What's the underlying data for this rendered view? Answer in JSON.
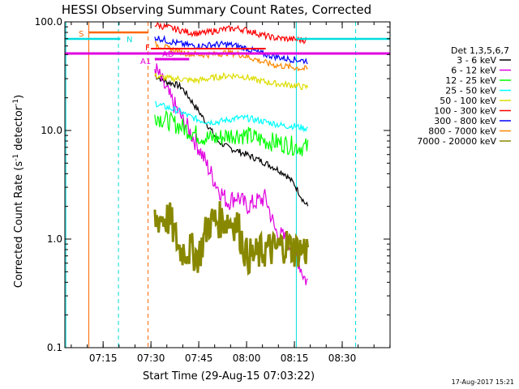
{
  "chart_data": {
    "type": "line",
    "title": "HESSI Observing Summary Count Rates, Corrected",
    "xlabel": "Start Time (29-Aug-15 07:03:22)",
    "ylabel": "Corrected Count Rate (s⁻¹ detector⁻¹)",
    "ylabel_parts": [
      "Corrected Count Rate (s",
      "-1",
      " detector",
      "-1",
      ")"
    ],
    "yscale": "log",
    "ylim": [
      0.1,
      100.0
    ],
    "xlim_minutes": [
      7.05,
      8.75
    ],
    "x_ticks": [
      {
        "t": 7.25,
        "label": "07:15"
      },
      {
        "t": 7.5,
        "label": "07:30"
      },
      {
        "t": 7.75,
        "label": "07:45"
      },
      {
        "t": 8.0,
        "label": "08:00"
      },
      {
        "t": 8.25,
        "label": "08:15"
      },
      {
        "t": 8.5,
        "label": "08:30"
      }
    ],
    "y_ticks": [
      {
        "v": 0.1,
        "label": "0.1"
      },
      {
        "v": 1.0,
        "label": "1.0"
      },
      {
        "v": 10.0,
        "label": "10.0"
      },
      {
        "v": 100.0,
        "label": "100.0"
      }
    ],
    "legend_title": "Det 1,3,5,6,7",
    "legend_position": "right",
    "series": [
      {
        "name": "3 - 6 keV",
        "color": "#000000",
        "x": [
          7.52,
          7.55,
          7.58,
          7.62,
          7.66,
          7.7,
          7.75,
          7.8,
          7.85,
          7.9,
          7.95,
          8.0,
          8.05,
          8.1,
          8.15,
          8.2,
          8.25,
          8.3,
          8.32
        ],
        "y": [
          32,
          30,
          28,
          27,
          25,
          20,
          15,
          11,
          8,
          7,
          6.5,
          6,
          5.5,
          5,
          4.5,
          4,
          3.2,
          2.2,
          2.0
        ]
      },
      {
        "name": "6 - 12 keV",
        "color": "#e000e0",
        "x": [
          7.52,
          7.55,
          7.6,
          7.65,
          7.7,
          7.75,
          7.8,
          7.85,
          7.9,
          7.95,
          8.0,
          8.05,
          8.1,
          8.15,
          8.2,
          8.25,
          8.3,
          8.32
        ],
        "y": [
          38,
          30,
          20,
          14,
          10,
          7,
          4.5,
          3,
          2.2,
          2.5,
          2.0,
          2.2,
          2.4,
          1.2,
          1.0,
          0.8,
          0.45,
          0.4
        ]
      },
      {
        "name": "12 - 25 keV",
        "color": "#00ff00",
        "x": [
          7.52,
          7.55,
          7.6,
          7.65,
          7.7,
          7.75,
          7.8,
          7.85,
          7.9,
          7.95,
          8.0,
          8.05,
          8.1,
          8.15,
          8.2,
          8.25,
          8.3,
          8.32
        ],
        "y": [
          14,
          13,
          12,
          11,
          10,
          9,
          8.5,
          8.5,
          9,
          9.2,
          9,
          8.5,
          8,
          7.8,
          7.5,
          7.2,
          7,
          7
        ]
      },
      {
        "name": "25 - 50 keV",
        "color": "#00ffff",
        "x": [
          7.52,
          7.55,
          7.6,
          7.65,
          7.7,
          7.75,
          7.8,
          7.85,
          7.9,
          7.95,
          8.0,
          8.05,
          8.1,
          8.15,
          8.2,
          8.25,
          8.3,
          8.32
        ],
        "y": [
          18,
          17,
          16,
          15,
          13.5,
          12.5,
          12,
          12,
          12.5,
          13,
          13,
          12.5,
          12,
          11.5,
          11,
          11,
          10.5,
          10.5
        ]
      },
      {
        "name": "50 - 100 keV",
        "color": "#dddd00",
        "x": [
          7.52,
          7.55,
          7.6,
          7.65,
          7.7,
          7.75,
          7.8,
          7.85,
          7.9,
          7.95,
          8.0,
          8.05,
          8.1,
          8.15,
          8.2,
          8.25,
          8.3,
          8.32
        ],
        "y": [
          32,
          31,
          30,
          30,
          29,
          29,
          30,
          31,
          32,
          32,
          31,
          29,
          28,
          27,
          26.5,
          26,
          25,
          25
        ]
      },
      {
        "name": "100 - 300 keV",
        "color": "#ff0000",
        "x": [
          7.52,
          7.55,
          7.6,
          7.65,
          7.7,
          7.75,
          7.8,
          7.85,
          7.9,
          7.95,
          8.0,
          8.05,
          8.1,
          8.15,
          8.2,
          8.25,
          8.3,
          8.32
        ],
        "y": [
          95,
          92,
          88,
          84,
          80,
          78,
          80,
          84,
          86,
          87,
          84,
          79,
          74,
          71,
          70,
          69,
          68,
          68
        ]
      },
      {
        "name": "300 - 800 keV",
        "color": "#0000ff",
        "x": [
          7.52,
          7.55,
          7.6,
          7.65,
          7.7,
          7.75,
          7.8,
          7.85,
          7.9,
          7.95,
          8.0,
          8.05,
          8.1,
          8.15,
          8.2,
          8.25,
          8.3,
          8.32
        ],
        "y": [
          72,
          70,
          66,
          63,
          61,
          60,
          61,
          62,
          62,
          60,
          57,
          53,
          50,
          48,
          46,
          45,
          44,
          44
        ]
      },
      {
        "name": "800 - 7000 keV",
        "color": "#ff8800",
        "x": [
          7.52,
          7.55,
          7.6,
          7.65,
          7.7,
          7.75,
          7.8,
          7.85,
          7.9,
          7.95,
          8.0,
          8.05,
          8.1,
          8.15,
          8.2,
          8.25,
          8.3,
          8.32
        ],
        "y": [
          62,
          60,
          56,
          53,
          51,
          50,
          50,
          51,
          52,
          51,
          48,
          45,
          42,
          40,
          39,
          38,
          37,
          37
        ]
      },
      {
        "name": "7000 - 20000 keV",
        "color": "#888800",
        "x": [
          7.52,
          7.55,
          7.6,
          7.65,
          7.7,
          7.75,
          7.8,
          7.85,
          7.9,
          7.95,
          8.0,
          8.05,
          8.1,
          8.15,
          8.2,
          8.25,
          8.3,
          8.32
        ],
        "y": [
          1.5,
          1.6,
          1.5,
          0.8,
          0.8,
          0.7,
          1.4,
          1.5,
          1.5,
          1.4,
          0.7,
          0.7,
          0.8,
          0.8,
          0.9,
          0.8,
          0.8,
          0.8
        ]
      }
    ],
    "annotations": [
      {
        "label": "S",
        "color": "#ff6600"
      },
      {
        "label": "N",
        "color": "#00dddd"
      },
      {
        "label": "F",
        "color": "#ff0000"
      },
      {
        "label": "AD",
        "color": "#e000e0"
      },
      {
        "label": "A1",
        "color": "#e000e0"
      }
    ],
    "footer_timestamp": "17-Aug-2017 15:21"
  }
}
